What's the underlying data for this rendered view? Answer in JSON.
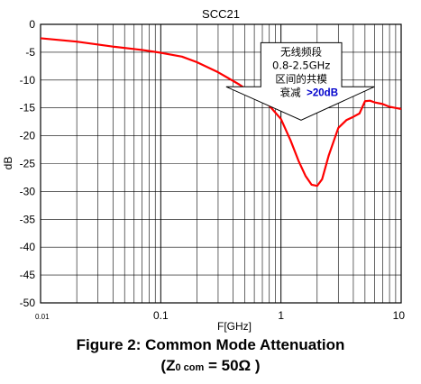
{
  "chart_data": {
    "type": "line",
    "title": "SCC21",
    "xlabel": "F[GHz]",
    "ylabel": "dB",
    "x_scale": "log",
    "xlim": [
      0.01,
      10
    ],
    "ylim": [
      -50,
      0
    ],
    "grid": true,
    "x_tick_labels": [
      "0.01",
      "0.1",
      "1",
      "10"
    ],
    "y_tick_labels": [
      "0",
      "-5",
      "-10",
      "-15",
      "-20",
      "-25",
      "-30",
      "-35",
      "-40",
      "-45",
      "-50"
    ],
    "series": [
      {
        "color": "#ff0000",
        "x": [
          0.01,
          0.02,
          0.04,
          0.07,
          0.1,
          0.15,
          0.2,
          0.3,
          0.45,
          0.6,
          0.8,
          1.0,
          1.2,
          1.4,
          1.6,
          1.8,
          2.0,
          2.2,
          2.5,
          3.0,
          3.5,
          4.0,
          4.5,
          5.0,
          5.5,
          6.0,
          7.0,
          8.0,
          10.0
        ],
        "y": [
          -2.5,
          -3.1,
          -4.0,
          -4.6,
          -5.1,
          -5.8,
          -6.8,
          -8.6,
          -10.8,
          -12.6,
          -14.6,
          -17.0,
          -20.8,
          -24.5,
          -27.2,
          -28.8,
          -29.0,
          -27.8,
          -23.5,
          -18.6,
          -17.2,
          -16.6,
          -16.0,
          -13.8,
          -13.7,
          -14.0,
          -14.3,
          -14.8,
          -15.2
        ]
      }
    ],
    "annotation": {
      "lines": [
        "无线频段",
        "0.8-2.5GHz",
        "区间的共模",
        "衰减"
      ],
      "highlight": ">20dB",
      "highlight_color": "#0000cc"
    }
  },
  "caption": {
    "line1": "Figure 2:  Common Mode Attenuation",
    "line2_prefix": "(Z",
    "line2_sub": "0 com",
    "line2_suffix": " = 50Ω )"
  }
}
